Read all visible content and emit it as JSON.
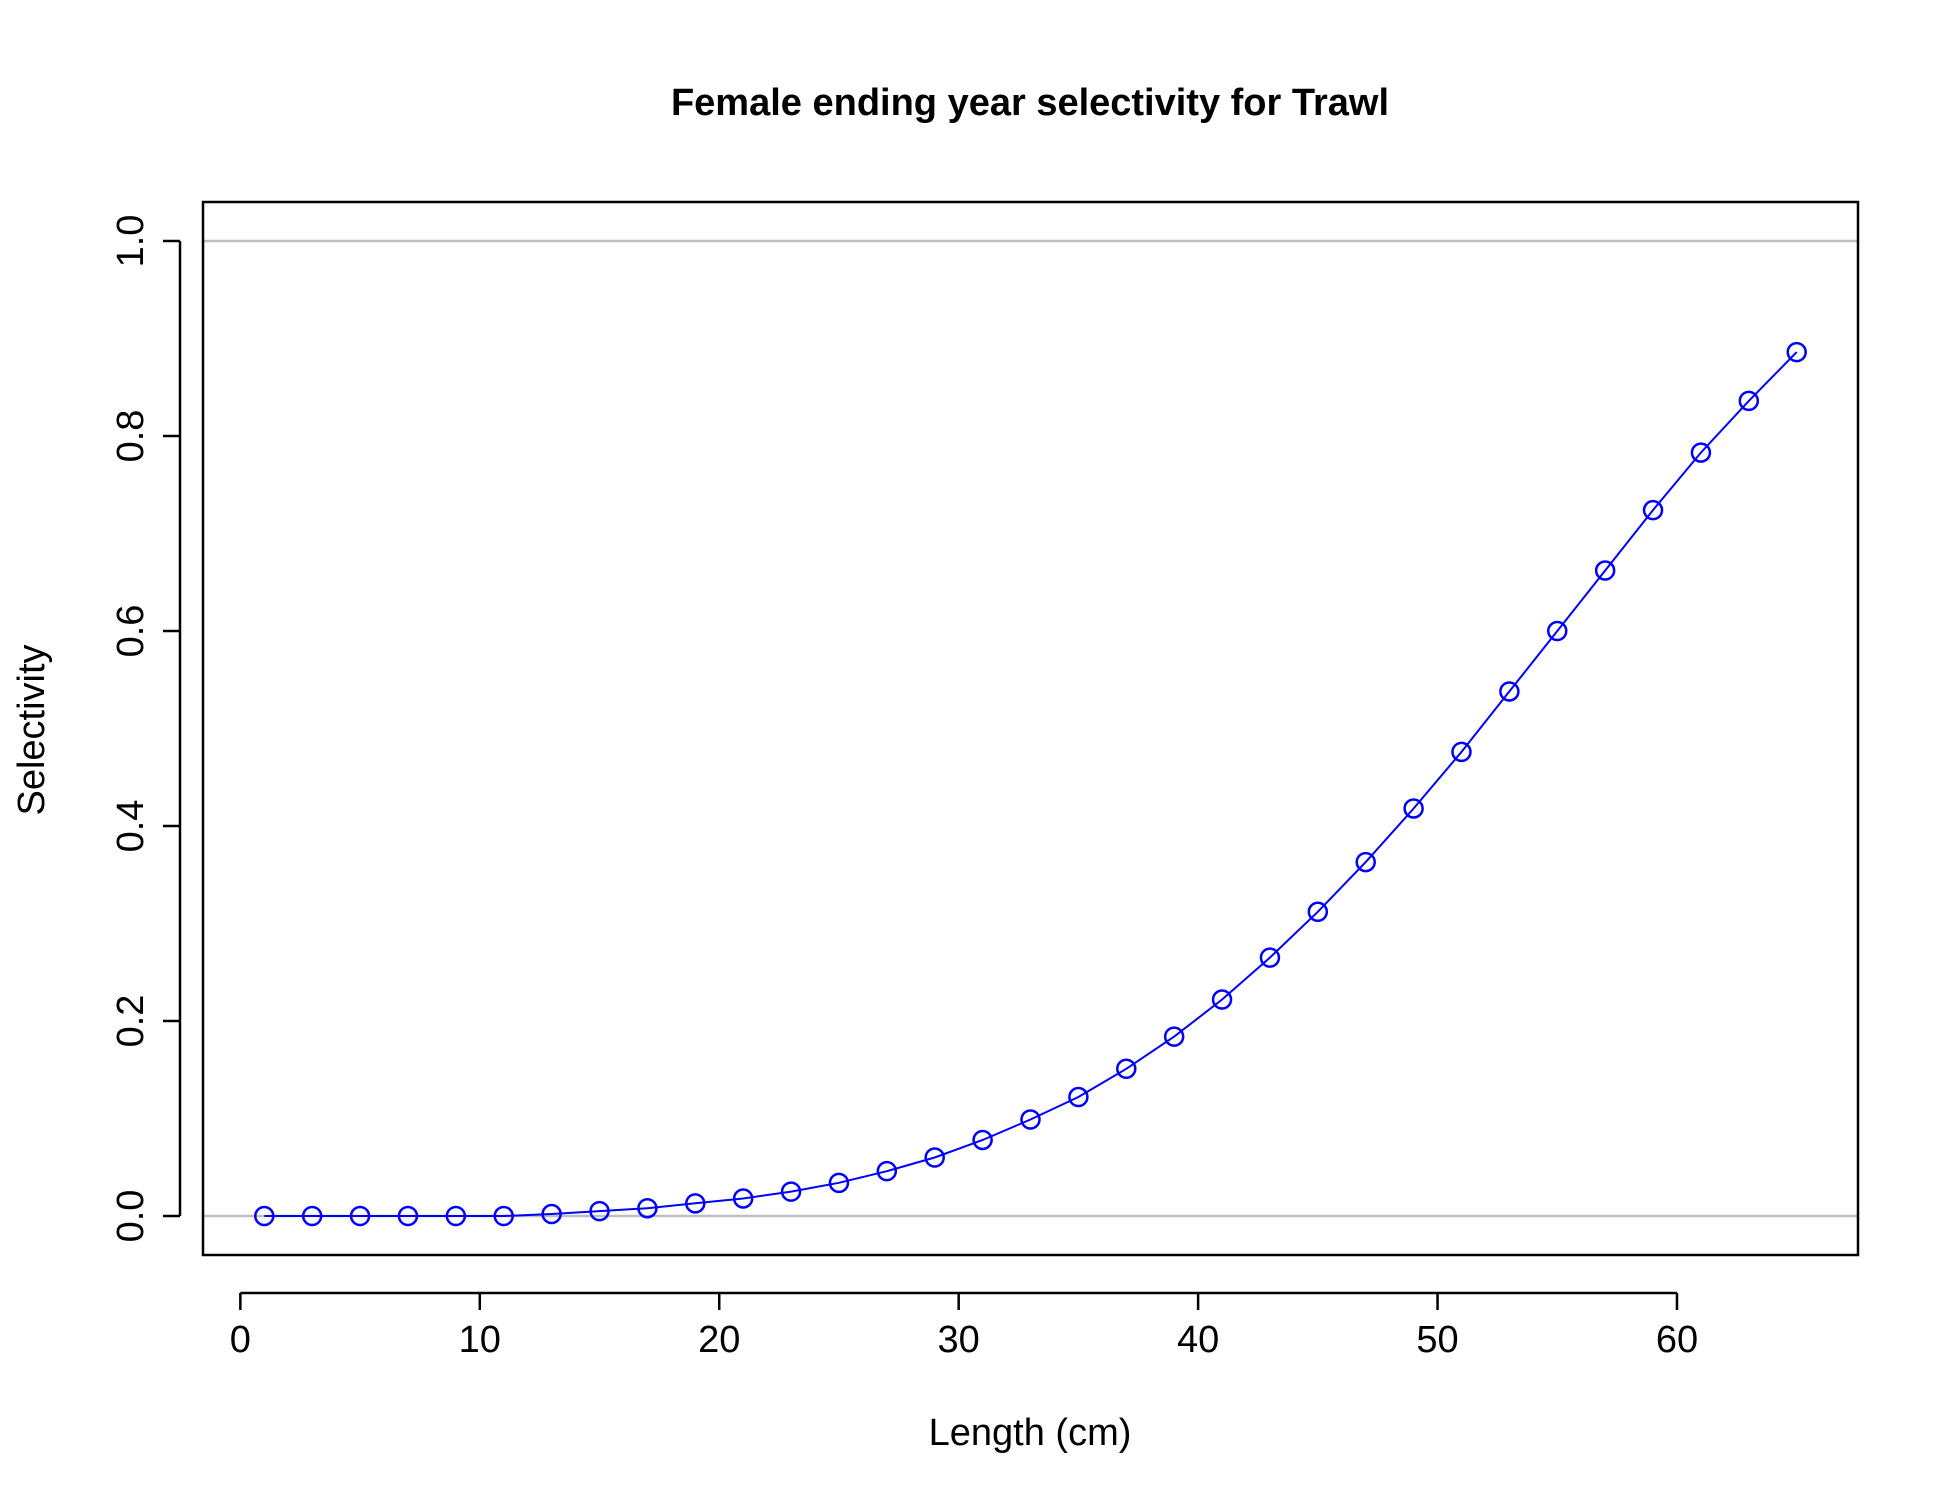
{
  "chart_data": {
    "type": "line",
    "title": "Female ending year selectivity for Trawl",
    "xlabel": "Length (cm)",
    "ylabel": "Selectivity",
    "xlim": [
      -1.56,
      67.56
    ],
    "ylim": [
      -0.04,
      1.04
    ],
    "xticks": [
      0,
      10,
      20,
      30,
      40,
      50,
      60
    ],
    "yticks": [
      0.0,
      0.2,
      0.4,
      0.6,
      0.8,
      1.0
    ],
    "xtick_labels": [
      "0",
      "10",
      "20",
      "30",
      "40",
      "50",
      "60"
    ],
    "ytick_labels": [
      "0.0",
      "0.2",
      "0.4",
      "0.6",
      "0.8",
      "1.0"
    ],
    "reference_lines": [
      0,
      1
    ],
    "grid": false,
    "series": [
      {
        "color": "#0000ff",
        "reference_line_color": "#bebebe",
        "marker": "open-circle",
        "x": [
          1,
          3,
          5,
          7,
          9,
          11,
          13,
          15,
          17,
          19,
          21,
          23,
          25,
          27,
          29,
          31,
          33,
          35,
          37,
          39,
          41,
          43,
          45,
          47,
          49,
          51,
          53,
          55,
          57,
          59,
          61,
          63,
          65
        ],
        "y": [
          0.0,
          0.0,
          0.0,
          0.0,
          0.0,
          0.0,
          0.002,
          0.005,
          0.008,
          0.013,
          0.018,
          0.025,
          0.034,
          0.046,
          0.06,
          0.078,
          0.099,
          0.122,
          0.151,
          0.184,
          0.222,
          0.265,
          0.312,
          0.363,
          0.418,
          0.476,
          0.538,
          0.6,
          0.662,
          0.724,
          0.783,
          0.836,
          0.886
        ]
      }
    ]
  }
}
